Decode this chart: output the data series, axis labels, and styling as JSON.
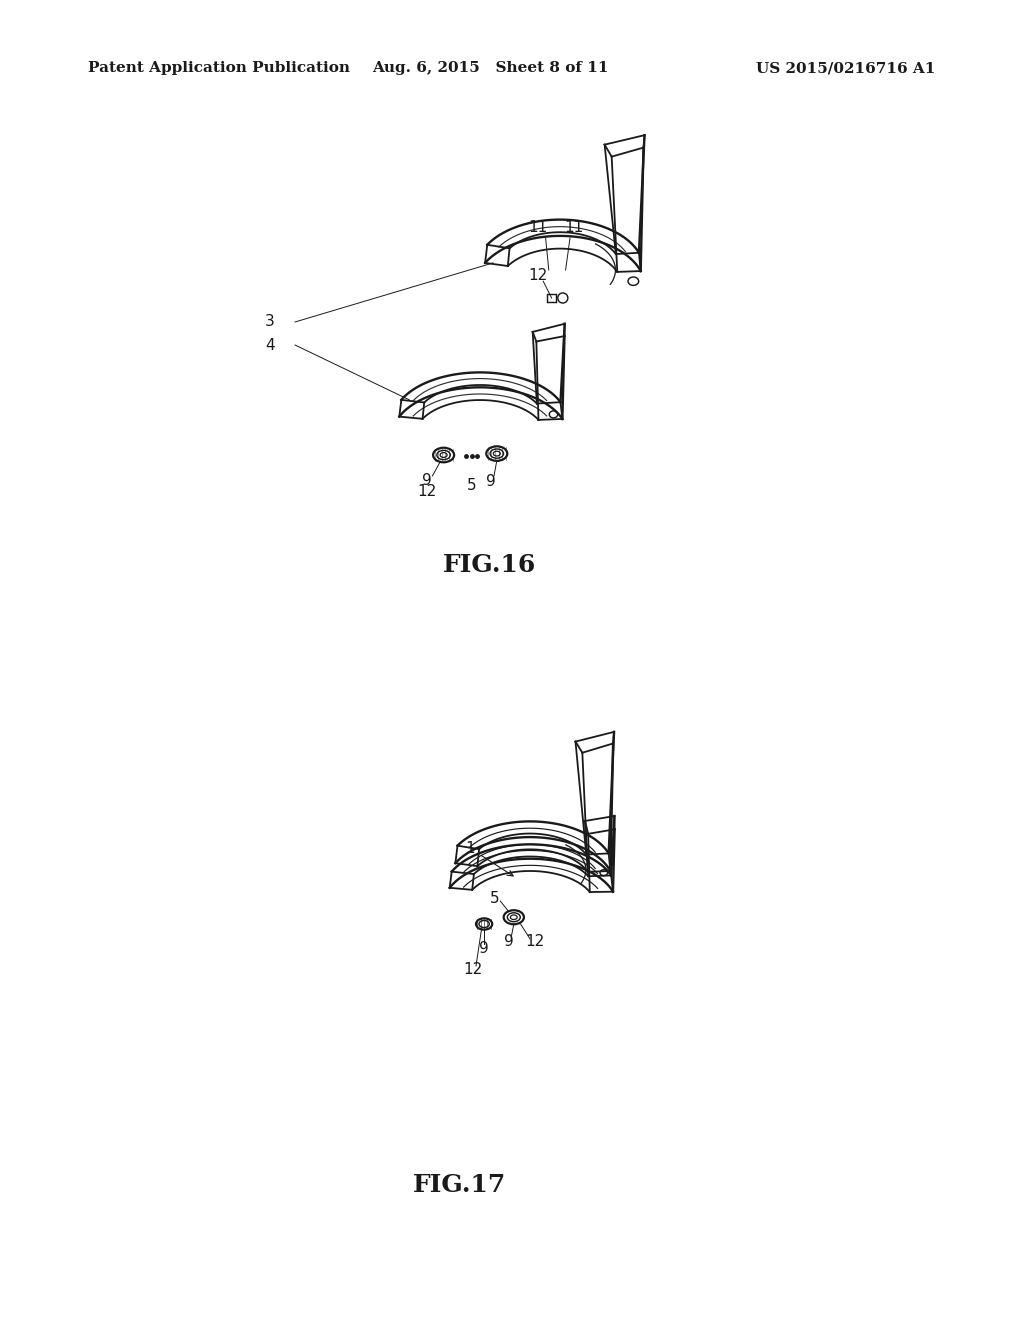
{
  "background_color": "#ffffff",
  "header_left": "Patent Application Publication",
  "header_center": "Aug. 6, 2015   Sheet 8 of 11",
  "header_right": "US 2015/0216716 A1",
  "header_fontsize": 11,
  "fig16_label": "FIG.16",
  "fig17_label": "FIG.17",
  "fig_label_fontsize": 18,
  "annotation_fontsize": 11,
  "text_color": "#000000",
  "line_color": "#1a1a1a"
}
